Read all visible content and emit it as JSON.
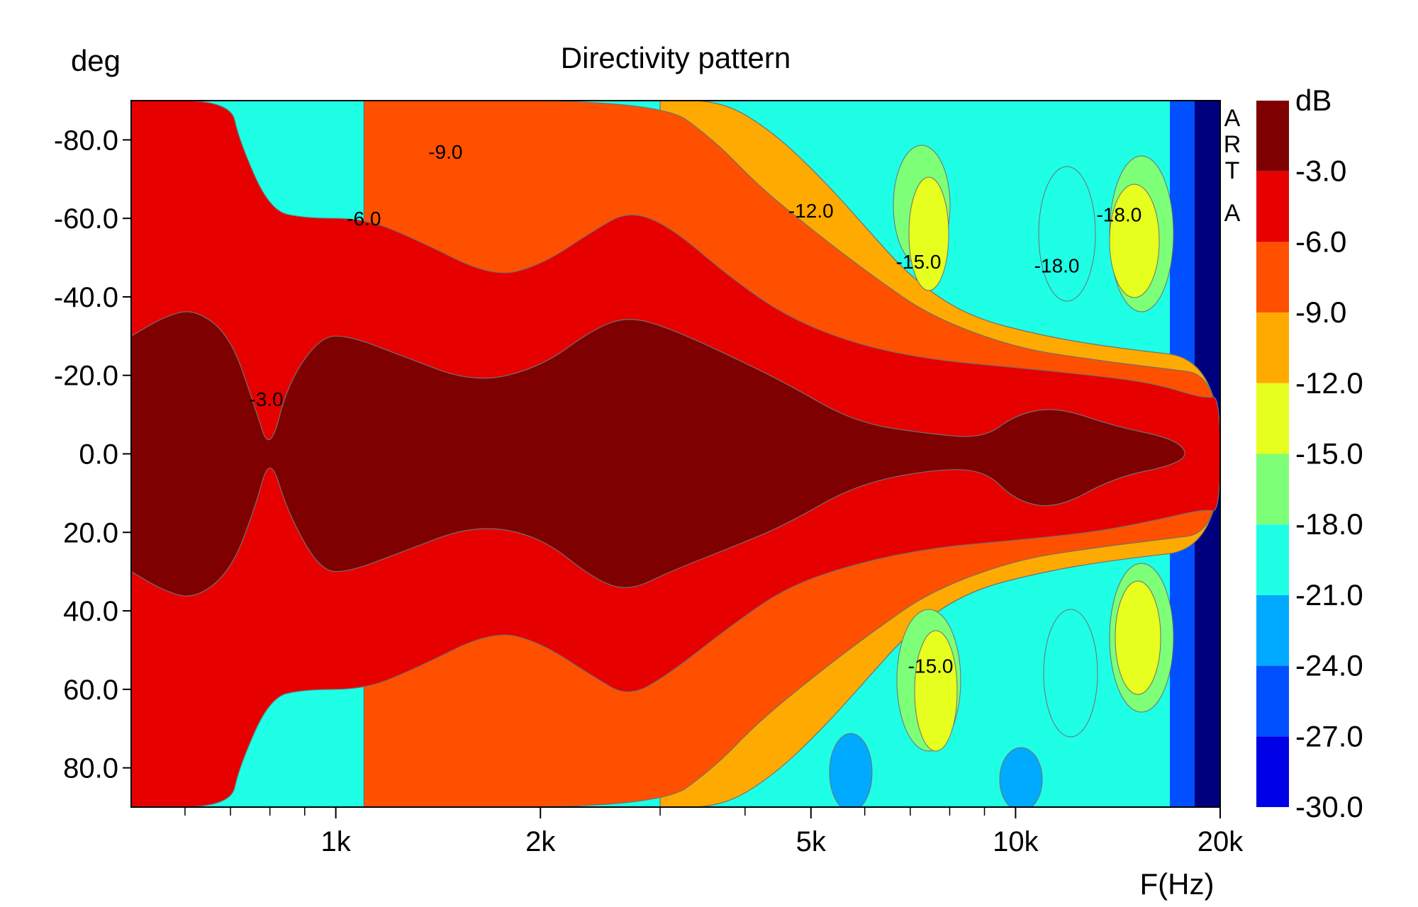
{
  "chart_data": {
    "type": "heatmap",
    "title": "Directivity pattern",
    "ylabel": "deg",
    "xlabel": "F(Hz)",
    "x_scale": "log",
    "xlim": [
      500,
      20000
    ],
    "ylim": [
      90,
      -90
    ],
    "x_ticks": [
      {
        "value": 1000,
        "label": "1k"
      },
      {
        "value": 2000,
        "label": "2k"
      },
      {
        "value": 5000,
        "label": "5k"
      },
      {
        "value": 10000,
        "label": "10k"
      },
      {
        "value": 20000,
        "label": "20k"
      }
    ],
    "x_minor_ticks": [
      600,
      700,
      800,
      900,
      3000,
      4000,
      6000,
      7000,
      8000,
      9000
    ],
    "y_ticks": [
      {
        "value": -80,
        "label": "-80.0"
      },
      {
        "value": -60,
        "label": "-60.0"
      },
      {
        "value": -40,
        "label": "-40.0"
      },
      {
        "value": -20,
        "label": "-20.0"
      },
      {
        "value": 0,
        "label": "0.0"
      },
      {
        "value": 20,
        "label": "20.0"
      },
      {
        "value": 40,
        "label": "40.0"
      },
      {
        "value": 60,
        "label": "60.0"
      },
      {
        "value": 80,
        "label": "80.0"
      }
    ],
    "watermark": "ARTA",
    "colorbar": {
      "unit": "dB",
      "levels": [
        {
          "label": "-3.0",
          "color": "#7f0000"
        },
        {
          "label": "-6.0",
          "color": "#e60000"
        },
        {
          "label": "-9.0",
          "color": "#ff5000"
        },
        {
          "label": "-12.0",
          "color": "#ffaa00"
        },
        {
          "label": "-15.0",
          "color": "#e6ff1e"
        },
        {
          "label": "-18.0",
          "color": "#7dff78"
        },
        {
          "label": "-21.0",
          "color": "#1effe6"
        },
        {
          "label": "-24.0",
          "color": "#00aaff"
        },
        {
          "label": "-27.0",
          "color": "#0050ff"
        },
        {
          "label": "-30.0",
          "color": "#0000e6"
        }
      ],
      "bottom_color": "#00007f"
    },
    "contours": [
      {
        "level": "-3.0",
        "points": [
          [
            500,
            -30
          ],
          [
            560,
            -35
          ],
          [
            620,
            -37
          ],
          [
            700,
            -30
          ],
          [
            760,
            -12
          ],
          [
            800,
            0
          ],
          [
            850,
            -18
          ],
          [
            950,
            -30
          ],
          [
            1050,
            -30
          ],
          [
            1250,
            -25
          ],
          [
            1600,
            -18
          ],
          [
            2000,
            -22
          ],
          [
            2400,
            -32
          ],
          [
            2700,
            -35
          ],
          [
            3100,
            -32
          ],
          [
            3800,
            -25
          ],
          [
            4600,
            -18
          ],
          [
            5800,
            -8
          ],
          [
            7500,
            -5
          ],
          [
            9000,
            -4
          ],
          [
            10000,
            -10
          ],
          [
            11500,
            -12
          ],
          [
            14000,
            -7
          ],
          [
            17000,
            -4
          ],
          [
            18000,
            0
          ],
          [
            17000,
            3
          ],
          [
            14000,
            6
          ],
          [
            11500,
            14
          ],
          [
            10000,
            12
          ],
          [
            9000,
            4
          ],
          [
            7500,
            4
          ],
          [
            5800,
            8
          ],
          [
            4600,
            18
          ],
          [
            3800,
            24
          ],
          [
            3100,
            30
          ],
          [
            2700,
            35
          ],
          [
            2400,
            32
          ],
          [
            2000,
            21
          ],
          [
            1600,
            18
          ],
          [
            1250,
            25
          ],
          [
            1050,
            30
          ],
          [
            950,
            30
          ],
          [
            850,
            15
          ],
          [
            800,
            0
          ],
          [
            760,
            14
          ],
          [
            700,
            30
          ],
          [
            620,
            37
          ],
          [
            560,
            35
          ],
          [
            500,
            30
          ]
        ]
      },
      {
        "level": "-6.0",
        "points": [
          [
            500,
            -90
          ],
          [
            700,
            -90
          ],
          [
            720,
            -80
          ],
          [
            800,
            -62
          ],
          [
            900,
            -60
          ],
          [
            1100,
            -60
          ],
          [
            1300,
            -55
          ],
          [
            1700,
            -45
          ],
          [
            2000,
            -48
          ],
          [
            2400,
            -57
          ],
          [
            2700,
            -62
          ],
          [
            3100,
            -58
          ],
          [
            3800,
            -45
          ],
          [
            4600,
            -35
          ],
          [
            5800,
            -28
          ],
          [
            7500,
            -24
          ],
          [
            10000,
            -22
          ],
          [
            13000,
            -20
          ],
          [
            16000,
            -18
          ],
          [
            19000,
            -14
          ],
          [
            20000,
            -15
          ],
          [
            20000,
            15
          ],
          [
            19000,
            14
          ],
          [
            16000,
            17
          ],
          [
            13000,
            20
          ],
          [
            10000,
            22
          ],
          [
            7500,
            24
          ],
          [
            5800,
            28
          ],
          [
            4600,
            34
          ],
          [
            3800,
            44
          ],
          [
            3100,
            56
          ],
          [
            2700,
            62
          ],
          [
            2400,
            57
          ],
          [
            2000,
            48
          ],
          [
            1700,
            45
          ],
          [
            1300,
            55
          ],
          [
            1100,
            60
          ],
          [
            900,
            60
          ],
          [
            800,
            62
          ],
          [
            720,
            80
          ],
          [
            700,
            90
          ],
          [
            500,
            90
          ]
        ]
      },
      {
        "level": "-9.0",
        "points": [
          [
            1100,
            -90
          ],
          [
            3000,
            -90
          ],
          [
            3600,
            -80
          ],
          [
            4200,
            -68
          ],
          [
            5200,
            -55
          ],
          [
            6200,
            -45
          ],
          [
            7500,
            -35
          ],
          [
            10000,
            -27
          ],
          [
            13000,
            -24
          ],
          [
            16000,
            -22
          ],
          [
            20000,
            -20
          ],
          [
            20000,
            20
          ],
          [
            16000,
            22
          ],
          [
            13000,
            24
          ],
          [
            10000,
            27
          ],
          [
            7500,
            35
          ],
          [
            6200,
            45
          ],
          [
            5200,
            55
          ],
          [
            4200,
            68
          ],
          [
            3600,
            80
          ],
          [
            3000,
            90
          ],
          [
            1100,
            90
          ]
        ]
      },
      {
        "level": "-12.0",
        "points": [
          [
            3000,
            -90
          ],
          [
            3700,
            -90
          ],
          [
            4400,
            -82
          ],
          [
            5200,
            -70
          ],
          [
            6000,
            -58
          ],
          [
            7000,
            -45
          ],
          [
            8500,
            -35
          ],
          [
            11000,
            -30
          ],
          [
            14000,
            -27
          ],
          [
            20000,
            -24
          ],
          [
            20000,
            24
          ],
          [
            14000,
            27
          ],
          [
            11000,
            30
          ],
          [
            8500,
            35
          ],
          [
            7000,
            45
          ],
          [
            6000,
            58
          ],
          [
            5200,
            70
          ],
          [
            4400,
            82
          ],
          [
            3700,
            90
          ],
          [
            3000,
            90
          ]
        ]
      }
    ],
    "contour_labels": [
      {
        "text": "-9.0",
        "freq": 1450,
        "deg": -77
      },
      {
        "text": "-6.0",
        "freq": 1100,
        "deg": -60
      },
      {
        "text": "-12.0",
        "freq": 5000,
        "deg": -62
      },
      {
        "text": "-15.0",
        "freq": 7200,
        "deg": -49
      },
      {
        "text": "-18.0",
        "freq": 11500,
        "deg": -48
      },
      {
        "text": "-18.0",
        "freq": 14200,
        "deg": -61
      },
      {
        "text": "-3.0",
        "freq": 790,
        "deg": -14
      },
      {
        "text": "-15.0",
        "freq": 7500,
        "deg": 54
      }
    ]
  }
}
